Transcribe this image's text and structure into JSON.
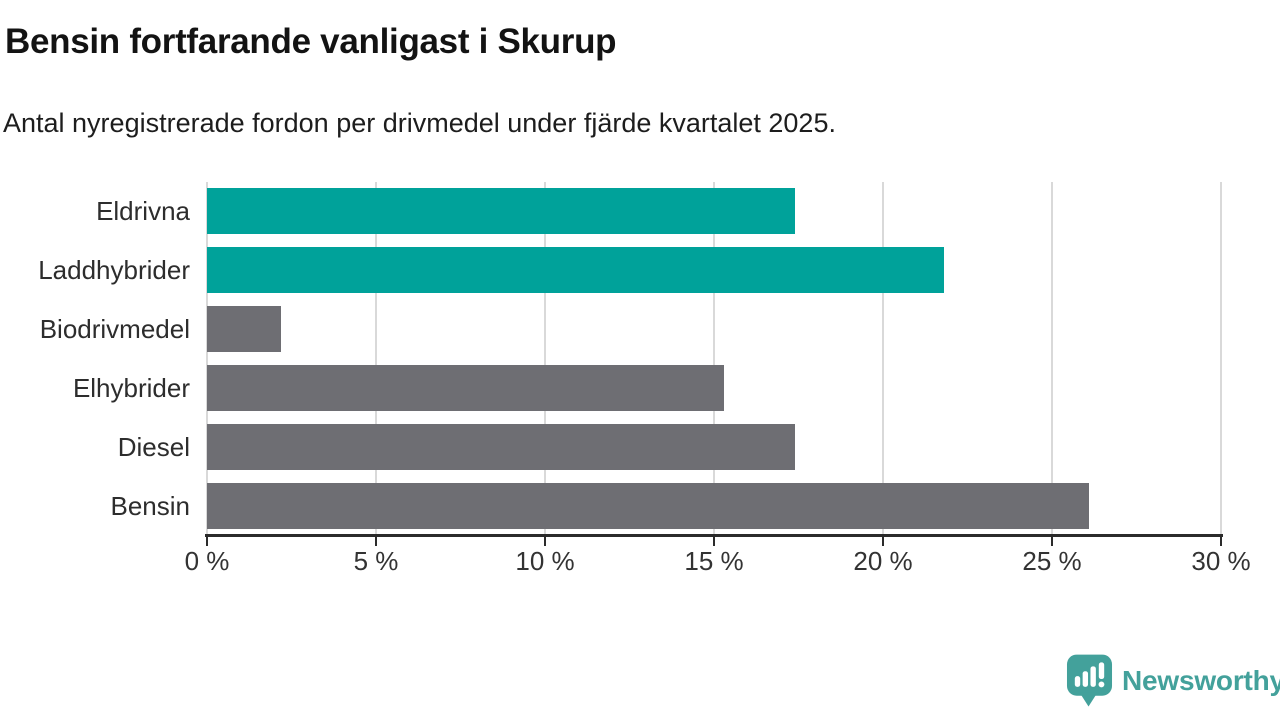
{
  "chart_data": {
    "type": "bar",
    "orientation": "horizontal",
    "title": "Bensin fortfarande vanligast i Skurup",
    "subtitle": "Antal nyregistrerade fordon per drivmedel under fjärde kvartalet 2025.",
    "categories": [
      "Eldrivna",
      "Laddhybrider",
      "Biodrivmedel",
      "Elhybrider",
      "Diesel",
      "Bensin"
    ],
    "values": [
      17.4,
      21.8,
      2.2,
      15.3,
      17.4,
      26.1
    ],
    "unit": "%",
    "bar_colors": [
      "#00a29a",
      "#00a29a",
      "#6e6e73",
      "#6e6e73",
      "#6e6e73",
      "#6e6e73"
    ],
    "xlim": [
      0,
      30
    ],
    "x_tick_values": [
      0,
      5,
      10,
      15,
      20,
      25,
      30
    ],
    "x_tick_labels": [
      "0 %",
      "5 %",
      "10 %",
      "15 %",
      "20 %",
      "25 %",
      "30 %"
    ],
    "grid": true,
    "legend": "none",
    "colors": {
      "highlight": "#00a29a",
      "default": "#6e6e73",
      "grid": "#d9d9d9",
      "axis": "#2b2b2b"
    }
  },
  "branding": {
    "logo_text": "Newsworthy",
    "logo_color": "#43a19b"
  }
}
